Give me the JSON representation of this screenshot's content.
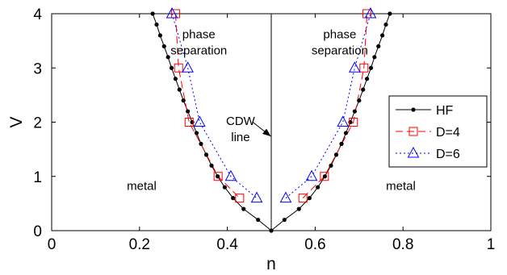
{
  "chart_data": {
    "type": "line",
    "xlabel": "n",
    "ylabel": "V",
    "xlim": [
      0,
      1
    ],
    "ylim": [
      0,
      4
    ],
    "x_ticks": [
      "0",
      "0.2",
      "0.4",
      "0.6",
      "0.8",
      "1"
    ],
    "y_ticks": [
      "0",
      "1",
      "2",
      "3",
      "4"
    ],
    "grid": false,
    "legend_position": "right",
    "vertical_line": {
      "x": 0.5,
      "color": "#000000"
    },
    "series": [
      {
        "name": "HF",
        "color": "#000000",
        "marker": "dot",
        "linestyle": "solid",
        "points": [
          [
            0.23,
            4.0
          ],
          [
            0.239,
            3.8
          ],
          [
            0.247,
            3.6
          ],
          [
            0.256,
            3.4
          ],
          [
            0.265,
            3.2
          ],
          [
            0.273,
            3.0
          ],
          [
            0.282,
            2.8
          ],
          [
            0.291,
            2.6
          ],
          [
            0.3,
            2.4
          ],
          [
            0.31,
            2.2
          ],
          [
            0.32,
            2.0
          ],
          [
            0.33,
            1.8
          ],
          [
            0.34,
            1.6
          ],
          [
            0.352,
            1.4
          ],
          [
            0.364,
            1.2
          ],
          [
            0.378,
            1.0
          ],
          [
            0.394,
            0.8
          ],
          [
            0.413,
            0.6
          ],
          [
            0.437,
            0.4
          ],
          [
            0.47,
            0.2
          ],
          [
            0.5,
            0.0
          ],
          [
            0.53,
            0.2
          ],
          [
            0.563,
            0.4
          ],
          [
            0.587,
            0.6
          ],
          [
            0.606,
            0.8
          ],
          [
            0.622,
            1.0
          ],
          [
            0.636,
            1.2
          ],
          [
            0.648,
            1.4
          ],
          [
            0.66,
            1.6
          ],
          [
            0.67,
            1.8
          ],
          [
            0.68,
            2.0
          ],
          [
            0.69,
            2.2
          ],
          [
            0.7,
            2.4
          ],
          [
            0.709,
            2.6
          ],
          [
            0.718,
            2.8
          ],
          [
            0.727,
            3.0
          ],
          [
            0.735,
            3.2
          ],
          [
            0.744,
            3.4
          ],
          [
            0.753,
            3.6
          ],
          [
            0.761,
            3.8
          ],
          [
            0.77,
            4.0
          ]
        ]
      },
      {
        "name": "D=4",
        "color": "#ff0000",
        "marker": "square",
        "linestyle": "dashed",
        "points": [
          [
            0.282,
            4.0
          ],
          [
            0.289,
            3.0
          ],
          [
            0.313,
            2.0
          ],
          [
            0.379,
            1.0
          ],
          [
            0.428,
            0.6
          ],
          [
            0.572,
            0.6
          ],
          [
            0.621,
            1.0
          ],
          [
            0.687,
            2.0
          ],
          [
            0.711,
            3.0
          ],
          [
            0.718,
            4.0
          ]
        ]
      },
      {
        "name": "D=6",
        "color": "#0000ff",
        "marker": "triangle",
        "linestyle": "dotted",
        "points": [
          [
            0.274,
            4.0
          ],
          [
            0.31,
            3.0
          ],
          [
            0.337,
            2.0
          ],
          [
            0.408,
            1.0
          ],
          [
            0.467,
            0.6
          ],
          [
            0.533,
            0.6
          ],
          [
            0.592,
            1.0
          ],
          [
            0.663,
            2.0
          ],
          [
            0.69,
            3.0
          ],
          [
            0.726,
            4.0
          ]
        ]
      }
    ],
    "annotations": [
      {
        "lines": [
          "phase",
          "separation"
        ],
        "x": 0.335,
        "y": 3.55
      },
      {
        "lines": [
          "phase",
          "separation"
        ],
        "x": 0.656,
        "y": 3.55
      },
      {
        "lines": [
          "CDW",
          "line"
        ],
        "x": 0.43,
        "y": 1.95
      },
      {
        "lines": [
          "metal"
        ],
        "x": 0.205,
        "y": 0.75
      },
      {
        "lines": [
          "metal"
        ],
        "x": 0.795,
        "y": 0.75
      }
    ],
    "arrow": {
      "from": [
        0.458,
        2.0
      ],
      "to": [
        0.499,
        1.74
      ]
    }
  }
}
